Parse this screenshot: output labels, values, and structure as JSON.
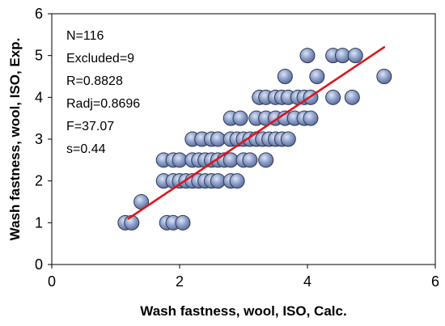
{
  "chart_data": {
    "type": "scatter",
    "title": "",
    "xlabel": "Wash fastness, wool, ISO, Calc.",
    "ylabel": "Wash fastness, wool, ISO, Exp.",
    "xlim": [
      0,
      6
    ],
    "ylim": [
      0,
      6
    ],
    "xticks": [
      "0",
      "2",
      "4",
      "6"
    ],
    "yticks": [
      "0",
      "1",
      "2",
      "3",
      "4",
      "5",
      "6"
    ],
    "grid": false,
    "legend": "none",
    "annotations": [
      "N=116",
      "Excluded=9",
      "R=0.8828",
      "Radj=0.8696",
      "F=37.07",
      "s=0.44"
    ],
    "colors": {
      "marker_fill": "#8c9fcb",
      "marker_edge": "#2f3a55",
      "fit_line": "#e0141c"
    },
    "fit_line": {
      "x": [
        1.2,
        5.2
      ],
      "y": [
        1.1,
        5.2
      ]
    },
    "points": [
      [
        1.15,
        1.0
      ],
      [
        1.25,
        1.0
      ],
      [
        1.4,
        1.5
      ],
      [
        1.8,
        1.0
      ],
      [
        1.9,
        1.0
      ],
      [
        2.05,
        1.0
      ],
      [
        1.75,
        2.0
      ],
      [
        1.9,
        2.0
      ],
      [
        2.0,
        2.0
      ],
      [
        2.1,
        2.0
      ],
      [
        2.2,
        2.0
      ],
      [
        2.3,
        2.0
      ],
      [
        2.4,
        2.0
      ],
      [
        2.5,
        2.0
      ],
      [
        2.6,
        2.0
      ],
      [
        2.8,
        2.0
      ],
      [
        2.9,
        2.0
      ],
      [
        1.75,
        2.5
      ],
      [
        1.9,
        2.5
      ],
      [
        2.0,
        2.5
      ],
      [
        2.2,
        2.5
      ],
      [
        2.3,
        2.5
      ],
      [
        2.4,
        2.5
      ],
      [
        2.5,
        2.5
      ],
      [
        2.6,
        2.5
      ],
      [
        2.7,
        2.5
      ],
      [
        2.8,
        2.5
      ],
      [
        3.0,
        2.5
      ],
      [
        3.1,
        2.5
      ],
      [
        3.35,
        2.5
      ],
      [
        2.2,
        3.0
      ],
      [
        2.35,
        3.0
      ],
      [
        2.5,
        3.0
      ],
      [
        2.6,
        3.0
      ],
      [
        2.8,
        3.0
      ],
      [
        2.9,
        3.0
      ],
      [
        3.0,
        3.0
      ],
      [
        3.1,
        3.0
      ],
      [
        3.2,
        3.0
      ],
      [
        3.3,
        3.0
      ],
      [
        3.4,
        3.0
      ],
      [
        3.5,
        3.0
      ],
      [
        3.6,
        3.0
      ],
      [
        3.7,
        3.0
      ],
      [
        2.8,
        3.5
      ],
      [
        2.95,
        3.5
      ],
      [
        3.2,
        3.5
      ],
      [
        3.35,
        3.5
      ],
      [
        3.5,
        3.5
      ],
      [
        3.65,
        3.5
      ],
      [
        3.8,
        3.5
      ],
      [
        3.95,
        3.5
      ],
      [
        4.05,
        3.5
      ],
      [
        3.25,
        4.0
      ],
      [
        3.35,
        4.0
      ],
      [
        3.5,
        4.0
      ],
      [
        3.6,
        4.0
      ],
      [
        3.7,
        4.0
      ],
      [
        3.85,
        4.0
      ],
      [
        3.95,
        4.0
      ],
      [
        4.05,
        4.0
      ],
      [
        4.4,
        4.0
      ],
      [
        4.7,
        4.0
      ],
      [
        3.65,
        4.5
      ],
      [
        4.15,
        4.5
      ],
      [
        5.2,
        4.5
      ],
      [
        4.0,
        5.0
      ],
      [
        4.4,
        5.0
      ],
      [
        4.55,
        5.0
      ],
      [
        4.75,
        5.0
      ]
    ]
  }
}
